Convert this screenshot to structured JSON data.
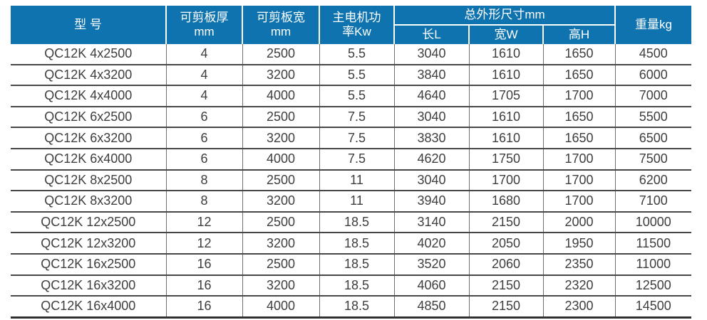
{
  "accent_color": "#0f73af",
  "grid_color": "#474747",
  "text_color": "#3e3e3e",
  "table": {
    "header": {
      "model": "型 号",
      "thickness_line1": "可剪板厚",
      "thickness_line2": "mm",
      "width_line1": "可剪板宽",
      "width_line2": "mm",
      "power_line1": "主电机功",
      "power_line2": "率Kw",
      "dims_group": "总外形尺寸mm",
      "dim_length": "长L",
      "dim_width": "宽W",
      "dim_height": "高H",
      "weight": "重量kg"
    },
    "rows": [
      [
        "QC12K 4x2500",
        "4",
        "2500",
        "5.5",
        "3040",
        "1610",
        "1650",
        "4500"
      ],
      [
        "QC12K 4x3200",
        "4",
        "3200",
        "5.5",
        "3840",
        "1610",
        "1650",
        "6000"
      ],
      [
        "QC12K 4x4000",
        "4",
        "4000",
        "5.5",
        "4640",
        "1705",
        "1700",
        "7000"
      ],
      [
        "QC12K 6x2500",
        "6",
        "2500",
        "7.5",
        "3040",
        "1610",
        "1650",
        "5500"
      ],
      [
        "QC12K 6x3200",
        "6",
        "3200",
        "7.5",
        "3830",
        "1610",
        "1650",
        "6500"
      ],
      [
        "QC12K 6x4000",
        "6",
        "4000",
        "7.5",
        "4620",
        "1750",
        "1700",
        "7500"
      ],
      [
        "QC12K 8x2500",
        "8",
        "2500",
        "11",
        "3040",
        "1700",
        "1700",
        "6200"
      ],
      [
        "QC12K 8x3200",
        "8",
        "3200",
        "11",
        "3940",
        "1680",
        "1700",
        "7100"
      ],
      [
        "QC12K 12x2500",
        "12",
        "2500",
        "18.5",
        "3140",
        "2150",
        "2000",
        "10000"
      ],
      [
        "QC12K 12x3200",
        "12",
        "3200",
        "18.5",
        "4020",
        "2050",
        "1950",
        "11500"
      ],
      [
        "QC12K 16x2500",
        "16",
        "2500",
        "18.5",
        "3520",
        "2060",
        "2350",
        "11000"
      ],
      [
        "QC12K 16x3200",
        "16",
        "3200",
        "18.5",
        "4060",
        "2150",
        "2320",
        "12500"
      ],
      [
        "QC12K 16x4000",
        "16",
        "4000",
        "18.5",
        "4850",
        "2150",
        "2300",
        "14500"
      ]
    ]
  }
}
